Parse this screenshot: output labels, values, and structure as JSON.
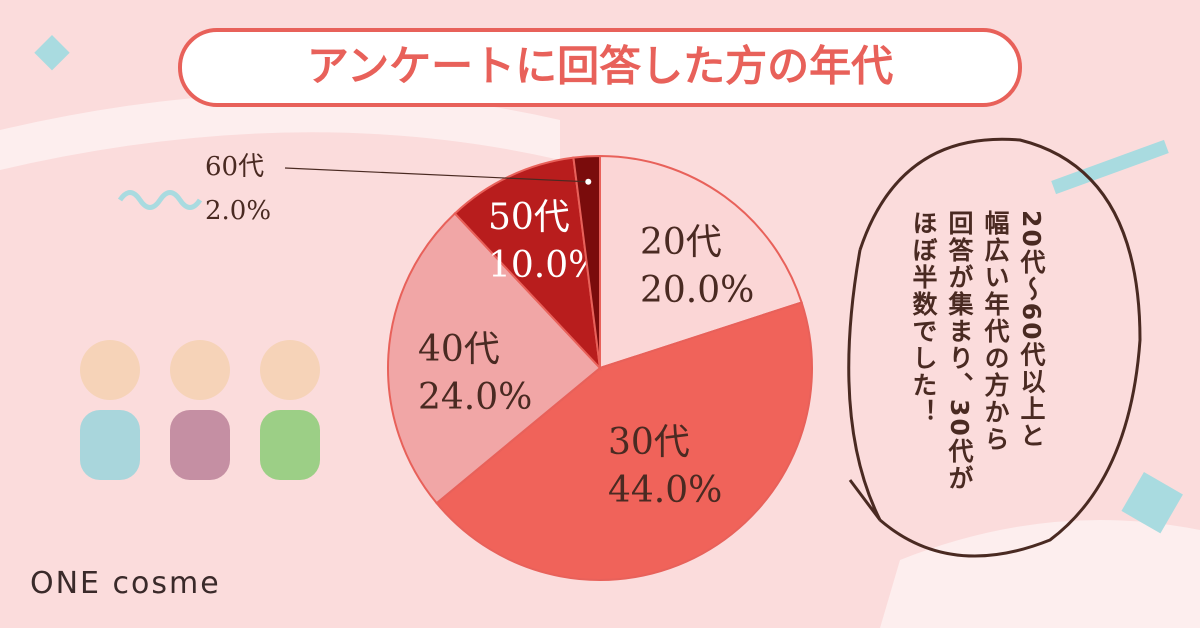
{
  "chart_data": {
    "type": "pie",
    "title": "アンケートに回答した方の年代",
    "categories": [
      "20代",
      "30代",
      "40代",
      "50代",
      "60代"
    ],
    "values": [
      20,
      44,
      24,
      10,
      2
    ],
    "value_labels": [
      "20.0%",
      "44.0%",
      "24.0%",
      "10.0%",
      "2.0%"
    ],
    "colors": [
      "#fbd6d6",
      "#f0635a",
      "#f1a6a6",
      "#b81d1d",
      "#7a0c0c"
    ]
  },
  "note": {
    "lines": [
      "20代〜60代以上と",
      "幅広い年代の方から",
      "回答が集まり、30代が",
      "ほぼ半数でした！"
    ]
  },
  "logo": "ONE cosme"
}
